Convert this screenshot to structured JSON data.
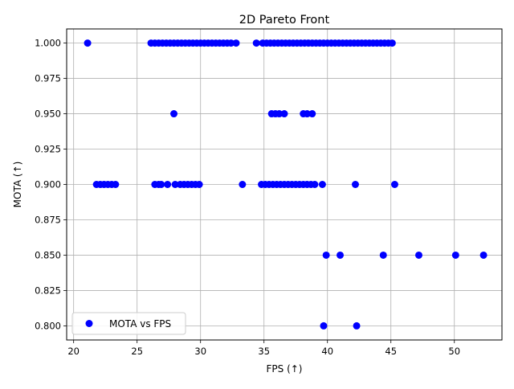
{
  "chart_data": {
    "type": "scatter",
    "title": "2D Pareto Front",
    "xlabel": "FPS (↑)",
    "ylabel": "MOTA (↑)",
    "xlim": [
      19.45,
      53.75
    ],
    "ylim": [
      0.79,
      1.01
    ],
    "x_ticks": [
      20,
      25,
      30,
      35,
      40,
      45,
      50
    ],
    "x_tick_labels": [
      "20",
      "25",
      "30",
      "35",
      "40",
      "45",
      "50"
    ],
    "y_ticks": [
      0.8,
      0.825,
      0.85,
      0.875,
      0.9,
      0.925,
      0.95,
      0.975,
      1.0
    ],
    "y_tick_labels": [
      "0.800",
      "0.825",
      "0.850",
      "0.875",
      "0.900",
      "0.925",
      "0.950",
      "0.975",
      "1.000"
    ],
    "grid": true,
    "legend_position": "lower-left",
    "colors": {
      "points": "#0000ff",
      "grid": "#b0b0b0",
      "axes": "#000000"
    },
    "series": [
      {
        "name": "MOTA vs FPS",
        "points": [
          [
            21.1,
            1.0
          ],
          [
            26.1,
            1.0
          ],
          [
            26.4,
            1.0
          ],
          [
            26.7,
            1.0
          ],
          [
            27.0,
            1.0
          ],
          [
            27.3,
            1.0
          ],
          [
            27.6,
            1.0
          ],
          [
            27.9,
            1.0
          ],
          [
            28.2,
            1.0
          ],
          [
            28.5,
            1.0
          ],
          [
            28.8,
            1.0
          ],
          [
            29.1,
            1.0
          ],
          [
            29.4,
            1.0
          ],
          [
            29.7,
            1.0
          ],
          [
            30.0,
            1.0
          ],
          [
            30.3,
            1.0
          ],
          [
            30.6,
            1.0
          ],
          [
            30.9,
            1.0
          ],
          [
            31.2,
            1.0
          ],
          [
            31.5,
            1.0
          ],
          [
            31.8,
            1.0
          ],
          [
            32.1,
            1.0
          ],
          [
            32.4,
            1.0
          ],
          [
            32.8,
            1.0
          ],
          [
            34.4,
            1.0
          ],
          [
            34.9,
            1.0
          ],
          [
            35.2,
            1.0
          ],
          [
            35.5,
            1.0
          ],
          [
            35.8,
            1.0
          ],
          [
            36.1,
            1.0
          ],
          [
            36.4,
            1.0
          ],
          [
            36.7,
            1.0
          ],
          [
            37.0,
            1.0
          ],
          [
            37.3,
            1.0
          ],
          [
            37.6,
            1.0
          ],
          [
            37.9,
            1.0
          ],
          [
            38.2,
            1.0
          ],
          [
            38.5,
            1.0
          ],
          [
            38.8,
            1.0
          ],
          [
            39.1,
            1.0
          ],
          [
            39.4,
            1.0
          ],
          [
            39.7,
            1.0
          ],
          [
            40.0,
            1.0
          ],
          [
            40.3,
            1.0
          ],
          [
            40.6,
            1.0
          ],
          [
            40.9,
            1.0
          ],
          [
            41.2,
            1.0
          ],
          [
            41.5,
            1.0
          ],
          [
            41.8,
            1.0
          ],
          [
            42.1,
            1.0
          ],
          [
            42.4,
            1.0
          ],
          [
            42.7,
            1.0
          ],
          [
            43.0,
            1.0
          ],
          [
            43.3,
            1.0
          ],
          [
            43.6,
            1.0
          ],
          [
            43.9,
            1.0
          ],
          [
            44.2,
            1.0
          ],
          [
            44.5,
            1.0
          ],
          [
            44.8,
            1.0
          ],
          [
            45.1,
            1.0
          ],
          [
            27.9,
            0.95
          ],
          [
            35.6,
            0.95
          ],
          [
            35.9,
            0.95
          ],
          [
            36.2,
            0.95
          ],
          [
            36.6,
            0.95
          ],
          [
            38.1,
            0.95
          ],
          [
            38.4,
            0.95
          ],
          [
            38.8,
            0.95
          ],
          [
            21.8,
            0.9
          ],
          [
            22.1,
            0.9
          ],
          [
            22.4,
            0.9
          ],
          [
            22.7,
            0.9
          ],
          [
            23.0,
            0.9
          ],
          [
            23.3,
            0.9
          ],
          [
            26.4,
            0.9
          ],
          [
            26.7,
            0.9
          ],
          [
            26.9,
            0.9
          ],
          [
            27.4,
            0.9
          ],
          [
            28.0,
            0.9
          ],
          [
            28.4,
            0.9
          ],
          [
            28.7,
            0.9
          ],
          [
            29.0,
            0.9
          ],
          [
            29.3,
            0.9
          ],
          [
            29.6,
            0.9
          ],
          [
            29.9,
            0.9
          ],
          [
            33.3,
            0.9
          ],
          [
            34.8,
            0.9
          ],
          [
            35.1,
            0.9
          ],
          [
            35.4,
            0.9
          ],
          [
            35.7,
            0.9
          ],
          [
            36.0,
            0.9
          ],
          [
            36.3,
            0.9
          ],
          [
            36.6,
            0.9
          ],
          [
            36.9,
            0.9
          ],
          [
            37.2,
            0.9
          ],
          [
            37.5,
            0.9
          ],
          [
            37.8,
            0.9
          ],
          [
            38.1,
            0.9
          ],
          [
            38.4,
            0.9
          ],
          [
            38.7,
            0.9
          ],
          [
            39.0,
            0.9
          ],
          [
            39.6,
            0.9
          ],
          [
            42.2,
            0.9
          ],
          [
            45.3,
            0.9
          ],
          [
            39.9,
            0.85
          ],
          [
            41.0,
            0.85
          ],
          [
            44.4,
            0.85
          ],
          [
            47.2,
            0.85
          ],
          [
            50.1,
            0.85
          ],
          [
            52.3,
            0.85
          ],
          [
            39.7,
            0.8
          ],
          [
            42.3,
            0.8
          ]
        ]
      }
    ]
  }
}
